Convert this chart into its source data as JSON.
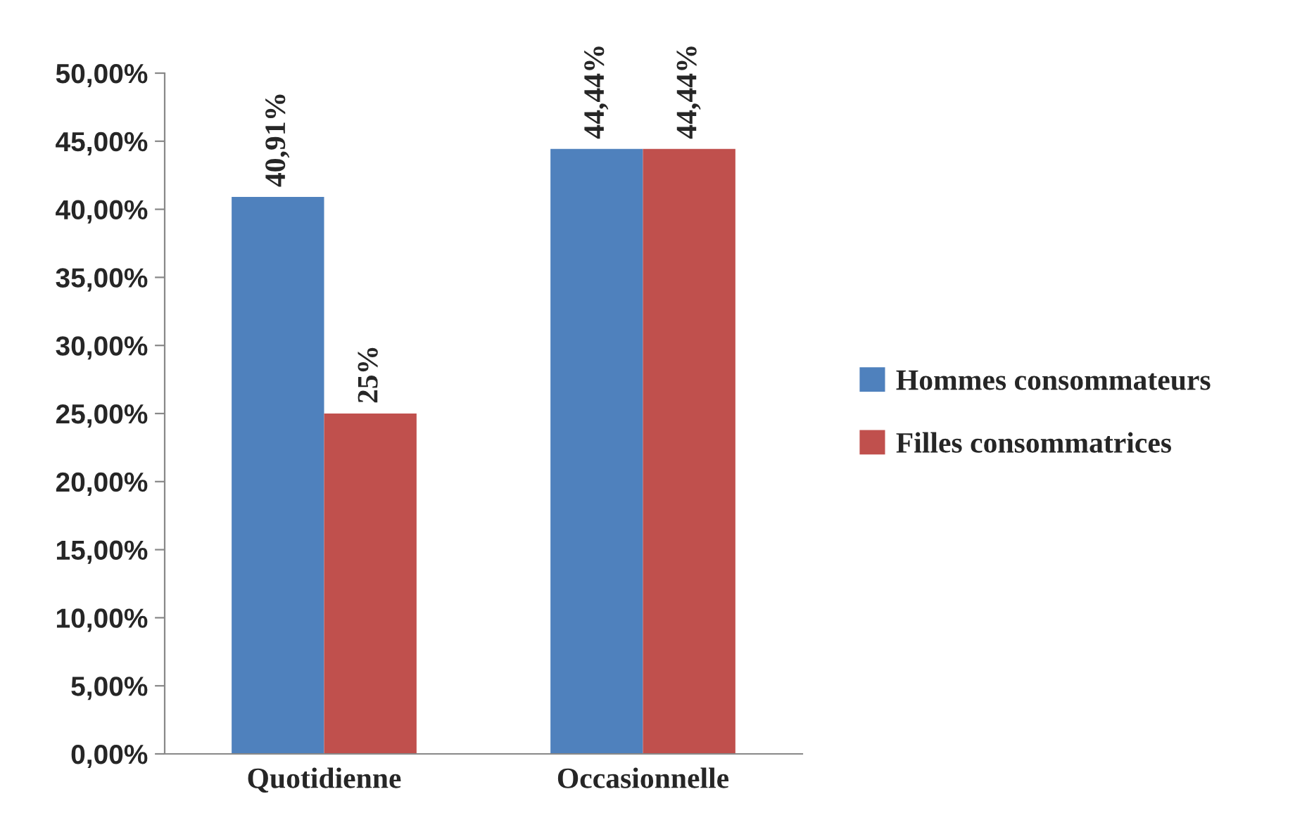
{
  "chart_data": {
    "type": "bar",
    "categories": [
      "Quotidienne",
      "Occasionnelle"
    ],
    "series": [
      {
        "name": "Hommes consommateurs",
        "color": "#4f81bd",
        "values": [
          40.91,
          44.44
        ],
        "value_labels": [
          "40,91%",
          "44,44%"
        ]
      },
      {
        "name": "Filles consommatrices",
        "color": "#c0504d",
        "values": [
          25,
          44.44
        ],
        "value_labels": [
          "25%",
          "44,44%"
        ]
      }
    ],
    "ylim": [
      0,
      50
    ],
    "yticks": [
      {
        "value": 0,
        "label": "0,00%"
      },
      {
        "value": 5,
        "label": "5,00%"
      },
      {
        "value": 10,
        "label": "10,00%"
      },
      {
        "value": 15,
        "label": "15,00%"
      },
      {
        "value": 20,
        "label": "20,00%"
      },
      {
        "value": 25,
        "label": "25,00%"
      },
      {
        "value": 30,
        "label": "30,00%"
      },
      {
        "value": 35,
        "label": "35,00%"
      },
      {
        "value": 40,
        "label": "40,00%"
      },
      {
        "value": 45,
        "label": "45,00%"
      },
      {
        "value": 50,
        "label": "50,00%"
      }
    ],
    "grid": false,
    "legend": "right"
  }
}
